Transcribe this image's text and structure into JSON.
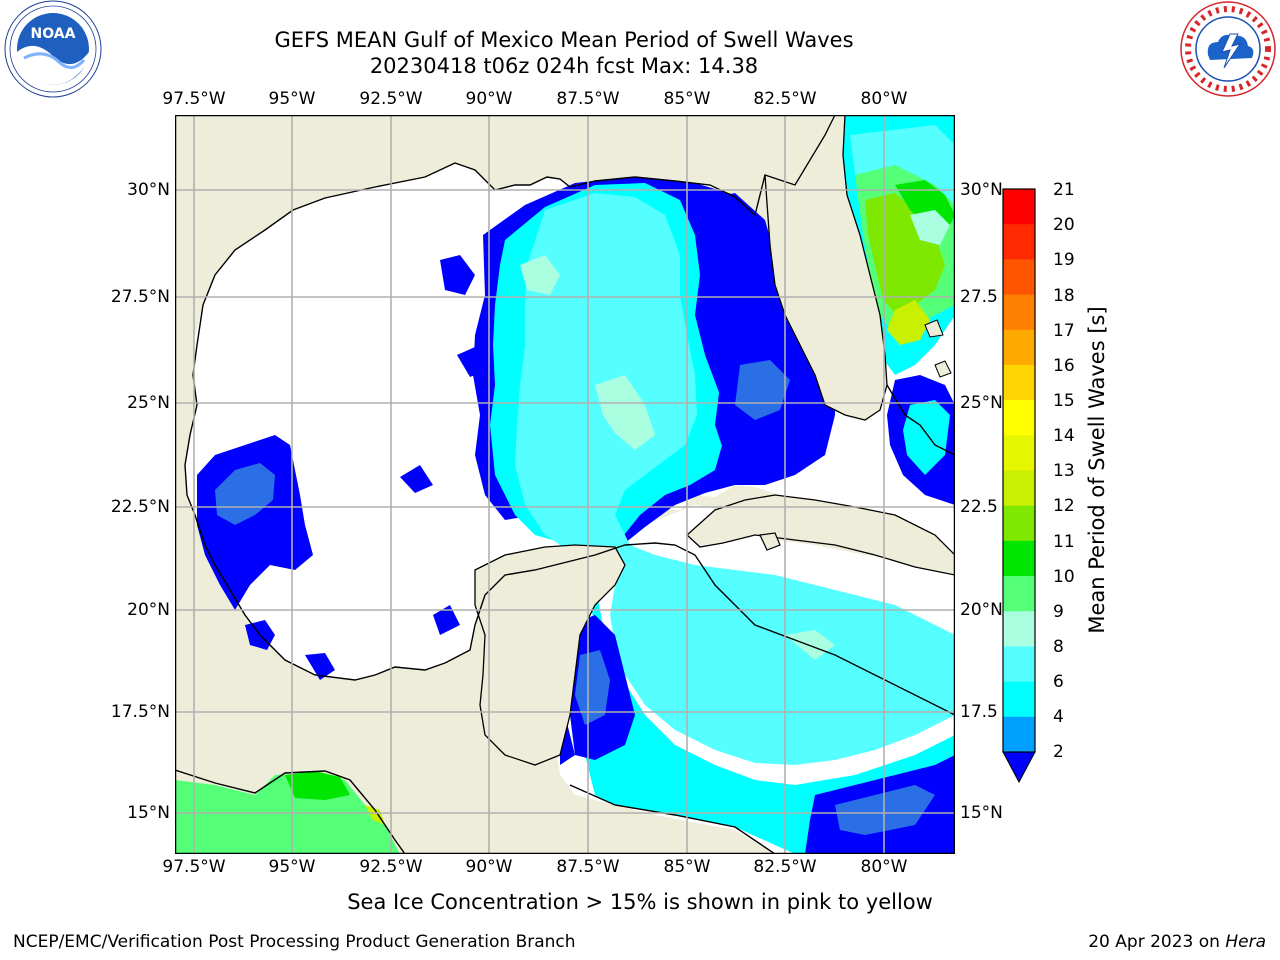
{
  "title": {
    "line1": "GEFS MEAN Gulf of Mexico Mean Period of Swell Waves",
    "line2": "20230418 t06z 024h fcst   Max: 14.38"
  },
  "logos": {
    "left_icon": "noaa-logo",
    "right_icon": "national-weather-service-logo",
    "noaa_text": "NOAA",
    "noaa_ring_text": "NATIONAL OCEANIC AND ATMOSPHERIC ADMINISTRATION · U.S. DEPARTMENT OF COMMERCE",
    "nws_ring_text": "NATIONAL WEATHER SERVICE"
  },
  "map": {
    "lon_labels": [
      "97.5°W",
      "95°W",
      "92.5°W",
      "90°W",
      "87.5°W",
      "85°W",
      "82.5°W",
      "80°W"
    ],
    "lat_labels_left": [
      "30°N",
      "27.5°N",
      "25°N",
      "22.5°N",
      "20°N",
      "17.5°N",
      "15°N"
    ],
    "lat_labels_right": [
      "30°N",
      "27.5",
      "25°N",
      "22.5",
      "20°N",
      "17.5",
      "15°N"
    ],
    "land_color": "#EEEDDA",
    "ocean_no_data_color": "#FFFFFF",
    "gridline_color": "#B0B0B0",
    "coastline_color": "#000000"
  },
  "colorbar": {
    "label": "Mean Period of Swell Waves [s]",
    "ticks": [
      "21",
      "20",
      "19",
      "18",
      "17",
      "16",
      "15",
      "14",
      "13",
      "12",
      "11",
      "10",
      "9",
      "8",
      "7",
      "6",
      "5",
      "4",
      "3",
      "2"
    ],
    "colors_top_to_bottom": [
      "#FF0000",
      "#FF2A00",
      "#FF5500",
      "#FF7F00",
      "#FFAA00",
      "#FFD400",
      "#FFFF00",
      "#E6F500",
      "#C8F000",
      "#7FE800",
      "#00E600",
      "#55FF77",
      "#AAFFE0",
      "#55FFFF",
      "#00FFFF",
      "#00A0FF"
    ],
    "extend_color": "#0000FF"
  },
  "note": "Sea Ice Concentration > 15% is shown in pink to yellow",
  "footer": {
    "left": "NCEP/EMC/Verification Post Processing Product Generation Branch",
    "date": "20 Apr 2023 on",
    "machine": "Hera"
  }
}
